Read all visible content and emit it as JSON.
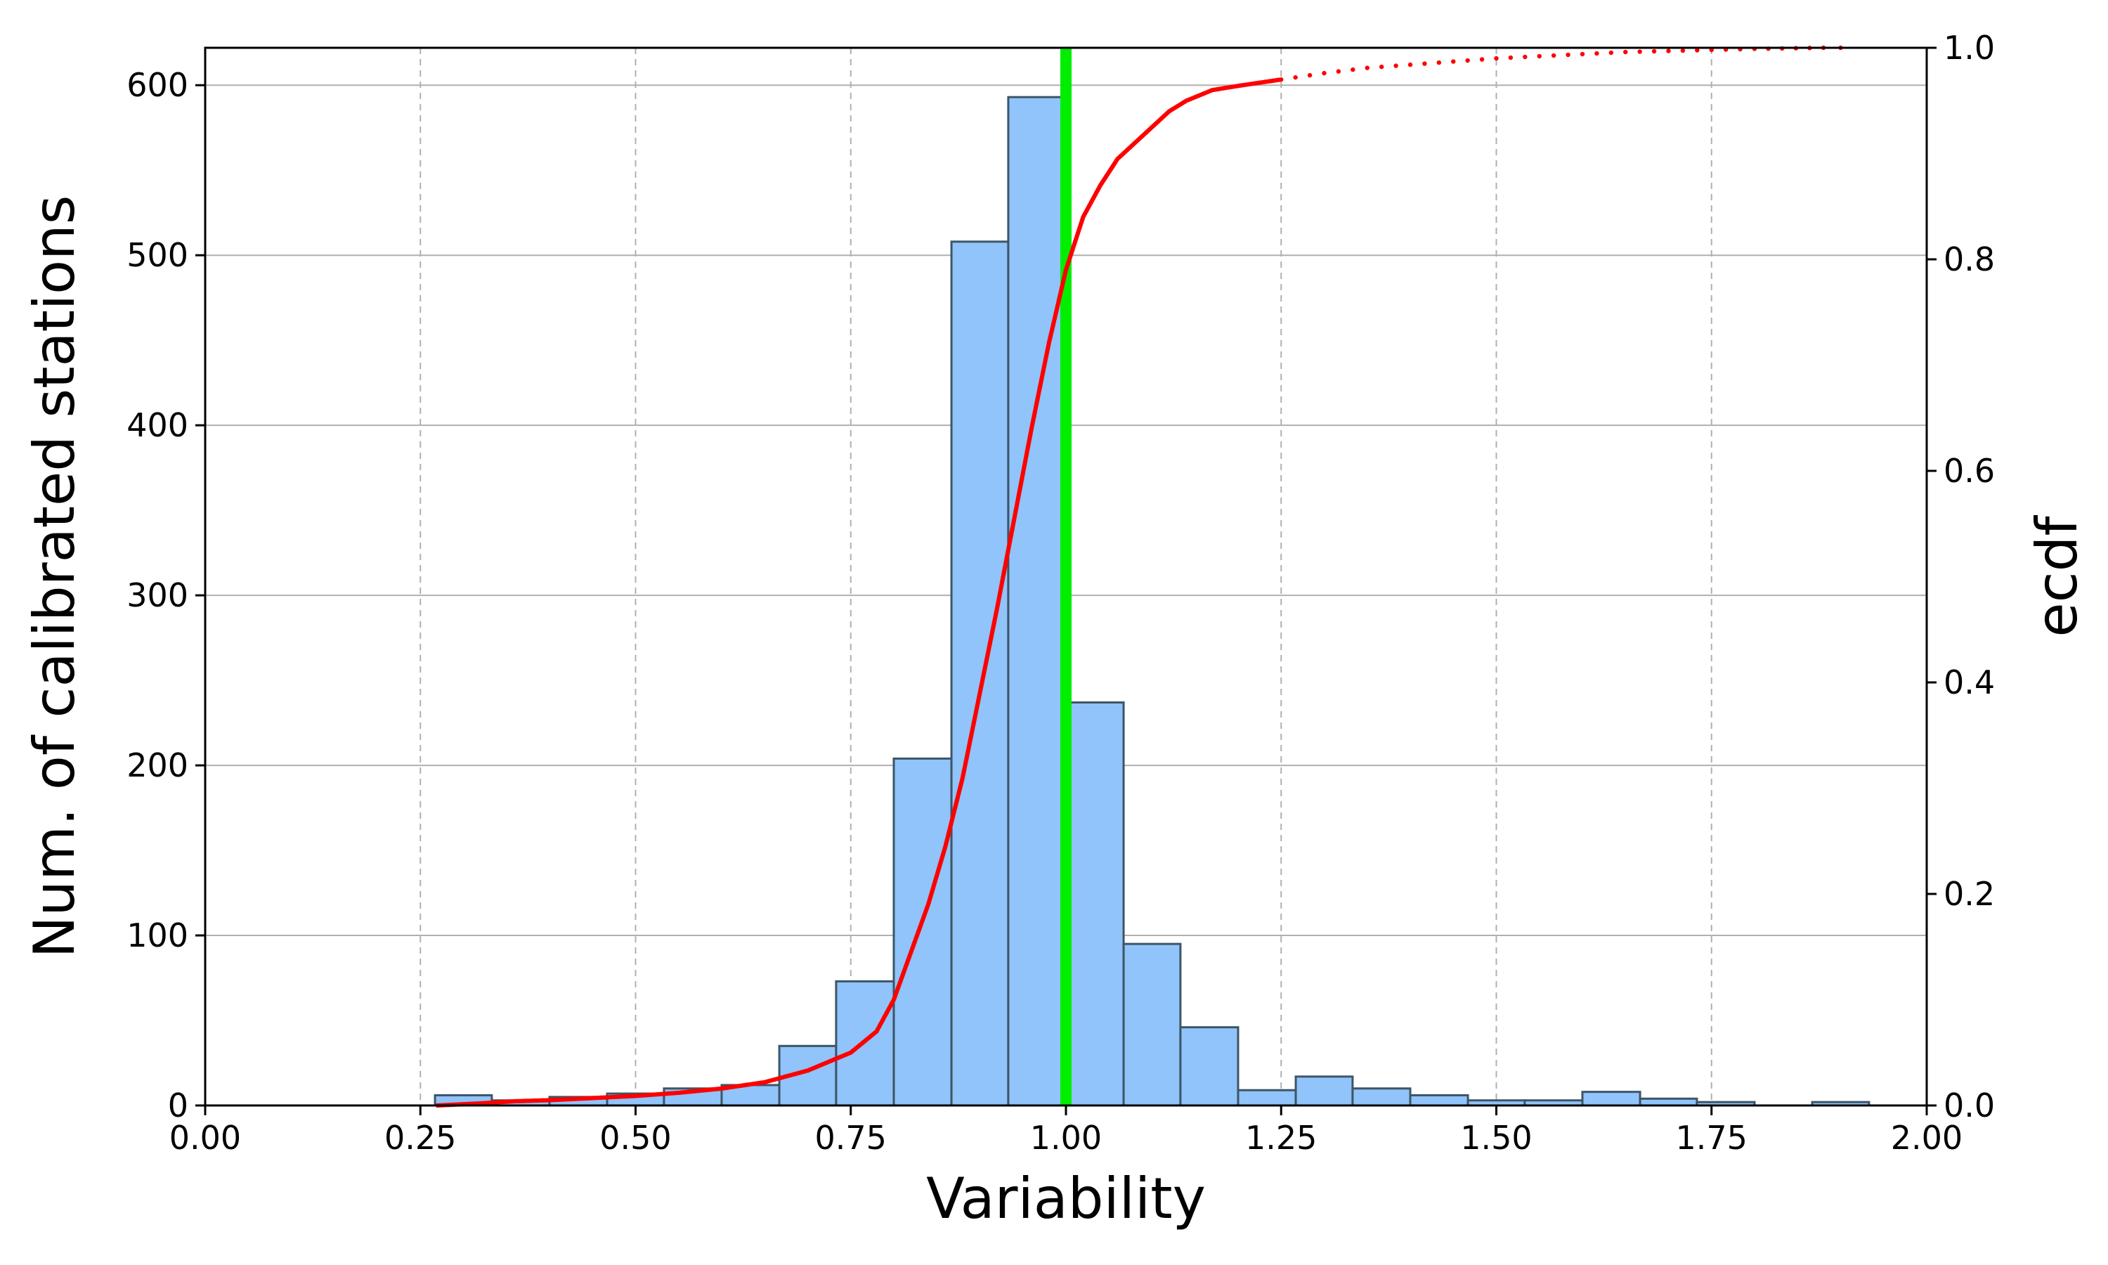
{
  "chart_data": {
    "type": "bar",
    "xlabel": "Variability",
    "ylabel": "Num. of calibrated stations",
    "y2label": "ecdf",
    "xlim": [
      0,
      2
    ],
    "ylim": [
      0,
      622
    ],
    "y2lim": [
      0,
      1
    ],
    "x_ticks": [
      "0.00",
      "0.25",
      "0.50",
      "0.75",
      "1.00",
      "1.25",
      "1.50",
      "1.75",
      "2.00"
    ],
    "y_ticks": [
      "0",
      "100",
      "200",
      "300",
      "400",
      "500",
      "600"
    ],
    "y2_ticks": [
      "0.0",
      "0.2",
      "0.4",
      "0.6",
      "0.8",
      "1.0"
    ],
    "grid": true,
    "reference_line_x": 1.0,
    "histogram": {
      "bins": [
        {
          "x0": 0.267,
          "x1": 0.333,
          "count": 6
        },
        {
          "x0": 0.333,
          "x1": 0.4,
          "count": 3
        },
        {
          "x0": 0.4,
          "x1": 0.467,
          "count": 5
        },
        {
          "x0": 0.467,
          "x1": 0.533,
          "count": 7
        },
        {
          "x0": 0.533,
          "x1": 0.6,
          "count": 10
        },
        {
          "x0": 0.6,
          "x1": 0.667,
          "count": 12
        },
        {
          "x0": 0.667,
          "x1": 0.733,
          "count": 35
        },
        {
          "x0": 0.733,
          "x1": 0.8,
          "count": 73
        },
        {
          "x0": 0.8,
          "x1": 0.867,
          "count": 204
        },
        {
          "x0": 0.867,
          "x1": 0.933,
          "count": 508
        },
        {
          "x0": 0.933,
          "x1": 1.0,
          "count": 593
        },
        {
          "x0": 1.0,
          "x1": 1.067,
          "count": 237
        },
        {
          "x0": 1.067,
          "x1": 1.133,
          "count": 95
        },
        {
          "x0": 1.133,
          "x1": 1.2,
          "count": 46
        },
        {
          "x0": 1.2,
          "x1": 1.267,
          "count": 9
        },
        {
          "x0": 1.267,
          "x1": 1.333,
          "count": 17
        },
        {
          "x0": 1.333,
          "x1": 1.4,
          "count": 10
        },
        {
          "x0": 1.4,
          "x1": 1.467,
          "count": 6
        },
        {
          "x0": 1.467,
          "x1": 1.533,
          "count": 3
        },
        {
          "x0": 1.533,
          "x1": 1.6,
          "count": 3
        },
        {
          "x0": 1.6,
          "x1": 1.667,
          "count": 8
        },
        {
          "x0": 1.667,
          "x1": 1.733,
          "count": 4
        },
        {
          "x0": 1.733,
          "x1": 1.8,
          "count": 2
        },
        {
          "x0": 1.8,
          "x1": 1.867,
          "count": 0
        },
        {
          "x0": 1.867,
          "x1": 1.933,
          "count": 2
        }
      ]
    },
    "ecdf_points": [
      [
        0.27,
        0.0
      ],
      [
        0.32,
        0.002
      ],
      [
        0.36,
        0.004
      ],
      [
        0.4,
        0.005
      ],
      [
        0.45,
        0.007
      ],
      [
        0.5,
        0.009
      ],
      [
        0.55,
        0.012
      ],
      [
        0.6,
        0.016
      ],
      [
        0.65,
        0.022
      ],
      [
        0.7,
        0.033
      ],
      [
        0.75,
        0.05
      ],
      [
        0.78,
        0.07
      ],
      [
        0.8,
        0.1
      ],
      [
        0.82,
        0.145
      ],
      [
        0.84,
        0.19
      ],
      [
        0.86,
        0.245
      ],
      [
        0.88,
        0.31
      ],
      [
        0.9,
        0.39
      ],
      [
        0.92,
        0.47
      ],
      [
        0.94,
        0.555
      ],
      [
        0.96,
        0.64
      ],
      [
        0.98,
        0.72
      ],
      [
        1.0,
        0.79
      ],
      [
        1.02,
        0.84
      ],
      [
        1.04,
        0.87
      ],
      [
        1.06,
        0.895
      ],
      [
        1.08,
        0.91
      ],
      [
        1.1,
        0.925
      ],
      [
        1.12,
        0.94
      ],
      [
        1.14,
        0.95
      ],
      [
        1.17,
        0.96
      ],
      [
        1.2,
        0.964
      ],
      [
        1.25,
        0.97
      ],
      [
        1.3,
        0.976
      ],
      [
        1.35,
        0.981
      ],
      [
        1.4,
        0.984
      ],
      [
        1.45,
        0.987
      ],
      [
        1.5,
        0.99
      ],
      [
        1.55,
        0.992
      ],
      [
        1.6,
        0.994
      ],
      [
        1.65,
        0.996
      ],
      [
        1.7,
        0.997
      ],
      [
        1.75,
        0.998
      ],
      [
        1.8,
        0.999
      ],
      [
        1.88,
        1.0
      ],
      [
        1.9,
        1.0
      ]
    ],
    "colors": {
      "bar_fill": "#90c4fa",
      "bar_edge": "#3d5566",
      "ecdf": "#ff0000",
      "reference_line": "#00ee00",
      "grid": "#b0b0b0"
    }
  }
}
